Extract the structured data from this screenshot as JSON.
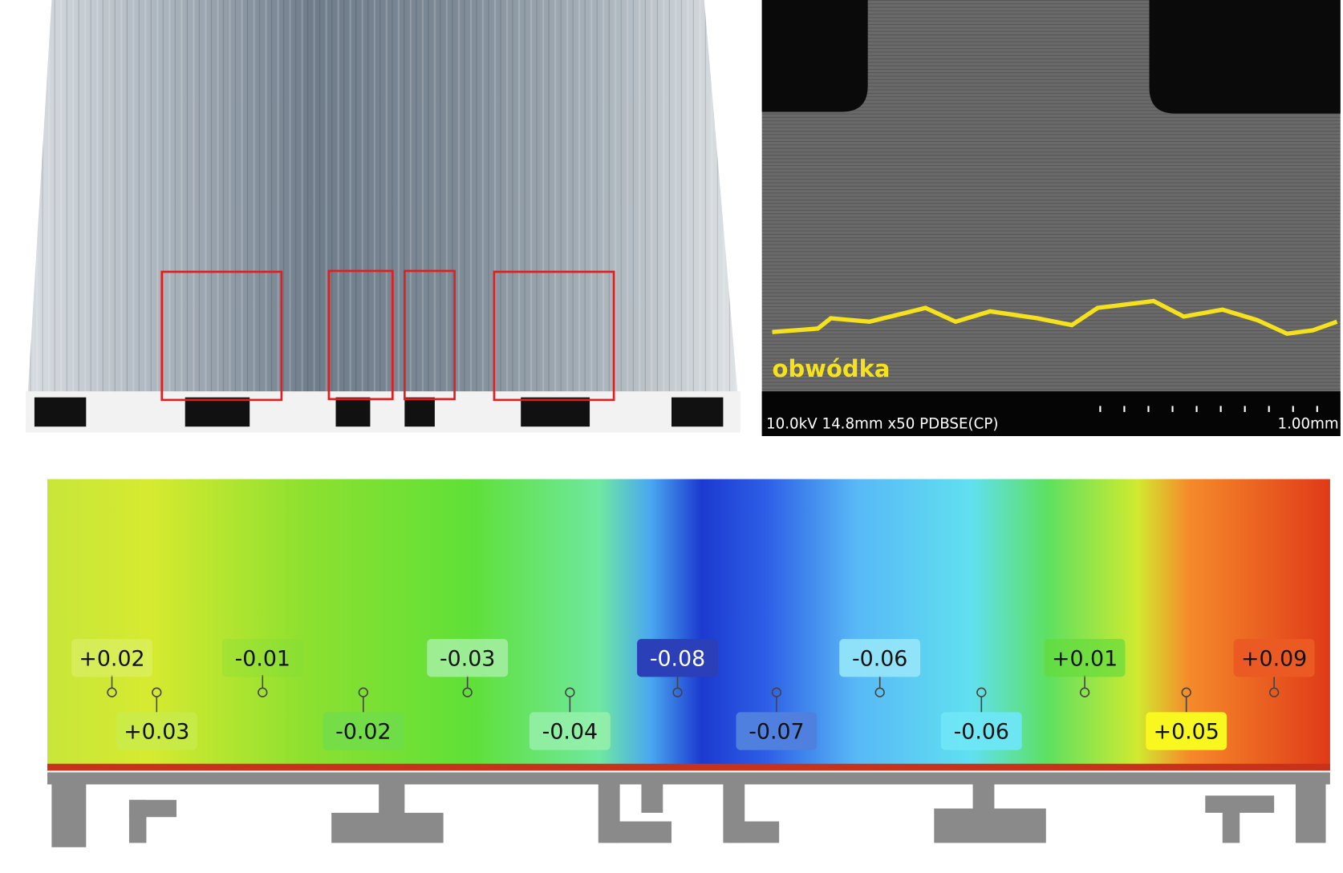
{
  "sem": {
    "annotation": "obwódka",
    "info": "10.0kV 14.8mm x50 PDBSE(CP)",
    "scale": "1.00mm"
  },
  "deviation_map": {
    "labels": [
      "+0.02",
      "+0.03",
      "-0.01",
      "-0.02",
      "-0.03",
      "-0.04",
      "-0.08",
      "-0.07",
      "-0.06",
      "-0.06",
      "+0.01",
      "+0.05",
      "+0.09"
    ]
  }
}
